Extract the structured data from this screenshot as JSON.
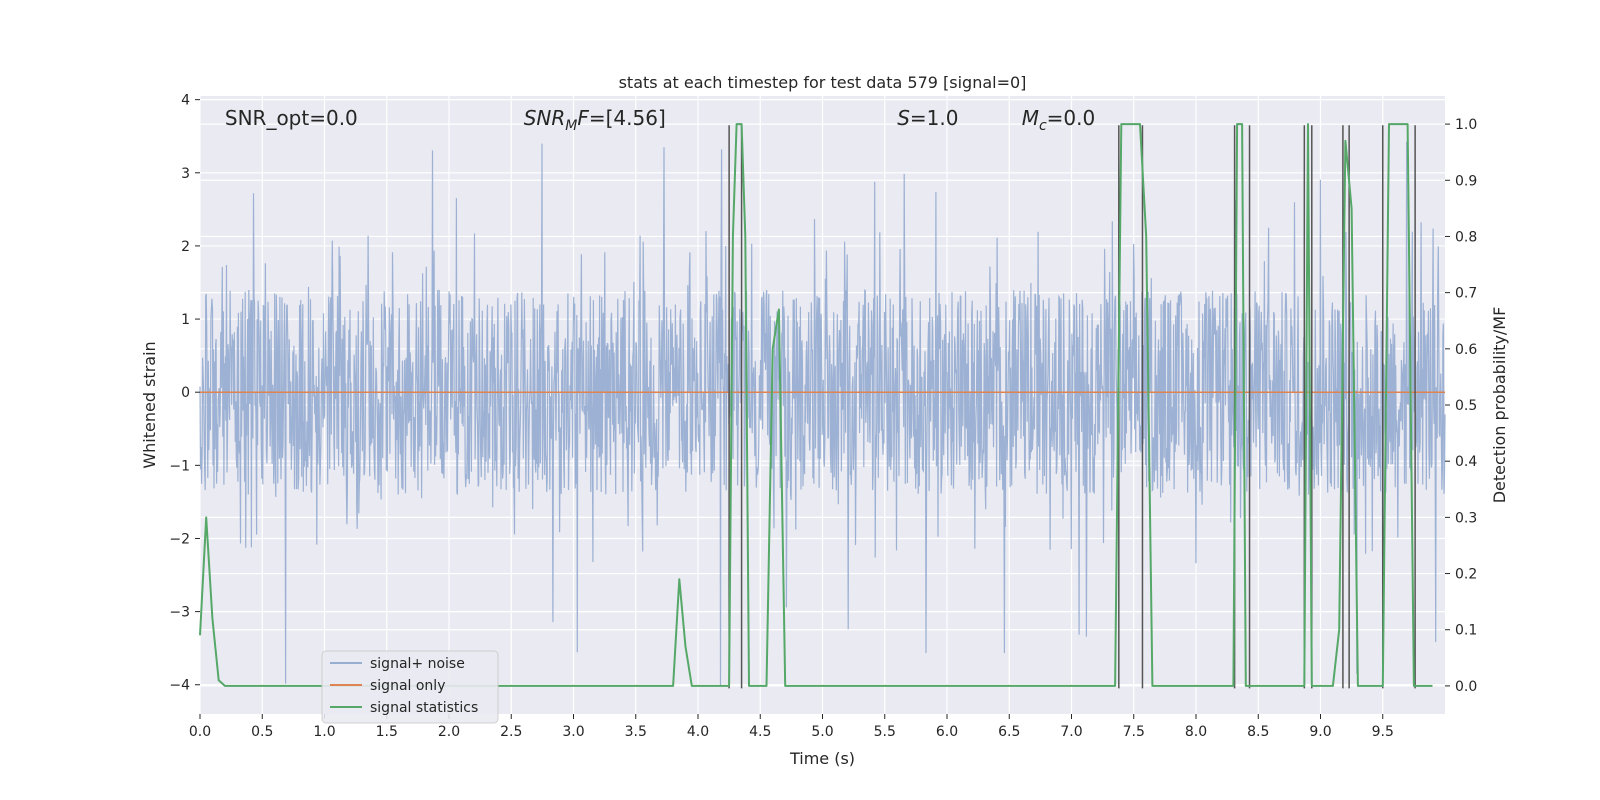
{
  "chart_data": {
    "type": "line",
    "title": "stats at each timestep for test data 579 [signal=0]",
    "xlabel": "Time (s)",
    "ylabel": "Whitened strain",
    "ylabel_right": "Detection probability/MF",
    "xlim": [
      0.0,
      10.0
    ],
    "ylim": [
      -4.4,
      4.05
    ],
    "ylim_right": [
      -0.05,
      1.05
    ],
    "x_ticks": [
      0.0,
      0.5,
      1.0,
      1.5,
      2.0,
      2.5,
      3.0,
      3.5,
      4.0,
      4.5,
      5.0,
      5.5,
      6.0,
      6.5,
      7.0,
      7.5,
      8.0,
      8.5,
      9.0,
      9.5
    ],
    "x_tick_labels": [
      "0.0",
      "0.5",
      "1.0",
      "1.5",
      "2.0",
      "2.5",
      "3.0",
      "3.5",
      "4.0",
      "4.5",
      "5.0",
      "5.5",
      "6.0",
      "6.5",
      "7.0",
      "7.5",
      "8.0",
      "8.5",
      "9.0",
      "9.5"
    ],
    "y_ticks": [
      -4,
      -3,
      -2,
      -1,
      0,
      1,
      2,
      3,
      4
    ],
    "y_tick_labels": [
      "−4",
      "−3",
      "−2",
      "−1",
      "0",
      "1",
      "2",
      "3",
      "4"
    ],
    "y_right_ticks": [
      0.0,
      0.1,
      0.2,
      0.3,
      0.4,
      0.5,
      0.6,
      0.7,
      0.8,
      0.9,
      1.0
    ],
    "y_right_tick_labels": [
      "0.0",
      "0.1",
      "0.2",
      "0.3",
      "0.4",
      "0.5",
      "0.6",
      "0.7",
      "0.8",
      "0.9",
      "1.0"
    ],
    "grid": true,
    "legend_placement": "lower-left",
    "annotations": [
      {
        "text": "SNR_opt=0.0",
        "x": 0.2,
        "y": 3.75
      },
      {
        "text": "SNR_MF=[4.56]",
        "x": 2.6,
        "y": 3.75
      },
      {
        "text": "S=1.0",
        "x": 5.6,
        "y": 3.75
      },
      {
        "text": "M_c=0.0",
        "x": 6.6,
        "y": 3.75
      }
    ],
    "colors": {
      "background": "#eaeaf2",
      "noise": "#98aed1",
      "signal": "#dd8452",
      "stats": "#55a868",
      "vlines": "#555555",
      "grid": "#ffffff"
    },
    "series": [
      {
        "name": "signal+ noise",
        "kind": "noise",
        "color": "#98aed1",
        "core_amplitude": 1.4,
        "peak_range": [
          -4.1,
          3.65
        ]
      },
      {
        "name": "signal only",
        "kind": "line",
        "color": "#dd8452",
        "x": [
          0.0,
          10.0
        ],
        "y": [
          0.0,
          0.0
        ]
      },
      {
        "name": "signal statistics",
        "kind": "line",
        "axis": "right",
        "color": "#55a868",
        "x": [
          0.0,
          0.05,
          0.1,
          0.15,
          0.2,
          0.25,
          0.3,
          3.8,
          3.85,
          3.9,
          3.95,
          4.0,
          4.25,
          4.28,
          4.31,
          4.35,
          4.38,
          4.41,
          4.45,
          4.5,
          4.55,
          4.6,
          4.65,
          4.7,
          4.75,
          4.8,
          7.1,
          7.15,
          7.35,
          7.4,
          7.45,
          7.5,
          7.55,
          7.6,
          7.65,
          7.7,
          8.3,
          8.33,
          8.37,
          8.4,
          8.43,
          8.46,
          8.87,
          8.9,
          8.93,
          8.95,
          9.0,
          9.1,
          9.15,
          9.2,
          9.25,
          9.3,
          9.35,
          9.4,
          9.5,
          9.55,
          9.6,
          9.7,
          9.75,
          9.8,
          9.85,
          9.9
        ],
        "y": [
          0.09,
          0.3,
          0.12,
          0.01,
          0.0,
          0.0,
          0.0,
          0.0,
          0.19,
          0.07,
          0.0,
          0.0,
          0.0,
          0.8,
          1.0,
          1.0,
          0.8,
          0.0,
          0.0,
          0.0,
          0.0,
          0.6,
          0.67,
          0.0,
          0.0,
          0.0,
          0.0,
          0.0,
          0.0,
          1.0,
          1.0,
          1.0,
          1.0,
          0.8,
          0.0,
          0.0,
          0.0,
          1.0,
          1.0,
          0.0,
          0.0,
          0.0,
          0.0,
          1.0,
          0.0,
          0.0,
          0.0,
          0.0,
          0.1,
          0.97,
          0.85,
          0.0,
          0.0,
          0.0,
          0.0,
          1.0,
          1.0,
          1.0,
          0.0,
          0.0,
          0.0,
          0.0
        ]
      }
    ],
    "vlines": [
      4.25,
      4.35,
      7.38,
      7.57,
      8.31,
      8.43,
      8.87,
      8.93,
      9.18,
      9.23,
      9.5,
      9.76
    ],
    "vline_top": 3.65,
    "vline_bottom": -4.05,
    "legend": [
      {
        "label": "signal+ noise",
        "color": "#98aed1"
      },
      {
        "label": "signal only",
        "color": "#dd8452"
      },
      {
        "label": "signal statistics",
        "color": "#55a868"
      }
    ]
  }
}
